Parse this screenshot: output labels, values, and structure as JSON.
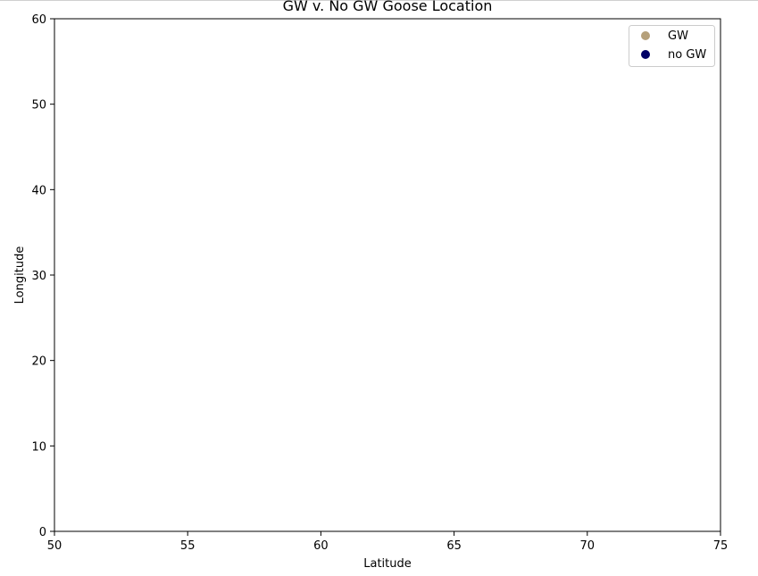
{
  "chart_data": {
    "type": "scatter",
    "title": "GW v. No GW Goose Location",
    "xlabel": "Latitude",
    "ylabel": "Longitude",
    "xlim": [
      50,
      75
    ],
    "ylim": [
      0,
      60
    ],
    "xticks": [
      "50",
      "55",
      "60",
      "65",
      "70",
      "75"
    ],
    "yticks": [
      "0",
      "10",
      "20",
      "30",
      "40",
      "50",
      "60"
    ],
    "grid": false,
    "legend_position": "top-right",
    "series": [
      {
        "name": "GW",
        "color": "#b5a07a",
        "points": []
      },
      {
        "name": "no GW",
        "color": "#000066",
        "points": []
      }
    ]
  }
}
